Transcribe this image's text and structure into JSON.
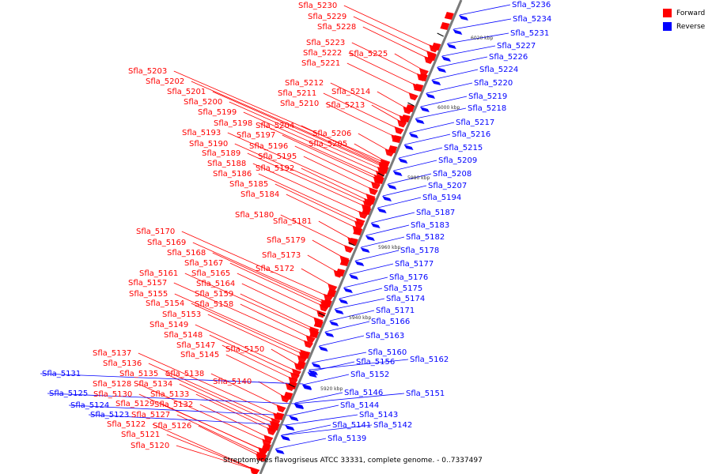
{
  "legend": {
    "forward": {
      "label": "Forward",
      "color": "#ff0000"
    },
    "reverse": {
      "label": "Reverse",
      "color": "#0000ff"
    }
  },
  "caption": "Streptomyces flavogriseus ATCC 33331, complete genome. - 0..7337497",
  "ticks": [
    "6020 kbp",
    "6000 kbp",
    "5980 kbp",
    "5960 kbp",
    "5940 kbp",
    "5920 kbp"
  ],
  "forward_genes": [
    "Sfla_5230",
    "Sfla_5229",
    "Sfla_5228",
    "Sfla_5223",
    "Sfla_5222",
    "Sfla_5225",
    "Sfla_5221",
    "Sfla_5203",
    "Sfla_5202",
    "Sfla_5212",
    "Sfla_5201",
    "Sfla_5211",
    "Sfla_5214",
    "Sfla_5200",
    "Sfla_5210",
    "Sfla_5213",
    "Sfla_5199",
    "Sfla_5198",
    "Sfla_5204",
    "Sfla_5193",
    "Sfla_5197",
    "Sfla_5206",
    "Sfla_5190",
    "Sfla_5196",
    "Sfla_5205",
    "Sfla_5189",
    "Sfla_5195",
    "Sfla_5188",
    "Sfla_5192",
    "Sfla_5186",
    "Sfla_5185",
    "Sfla_5184",
    "Sfla_5180",
    "Sfla_5181",
    "Sfla_5170",
    "Sfla_5169",
    "Sfla_5179",
    "Sfla_5168",
    "Sfla_5173",
    "Sfla_5167",
    "Sfla_5172",
    "Sfla_5161",
    "Sfla_5165",
    "Sfla_5157",
    "Sfla_5164",
    "Sfla_5155",
    "Sfla_5159",
    "Sfla_5154",
    "Sfla_5158",
    "Sfla_5153",
    "Sfla_5149",
    "Sfla_5148",
    "Sfla_5147",
    "Sfla_5150",
    "Sfla_5145",
    "Sfla_5137",
    "Sfla_5136",
    "Sfla_5135",
    "Sfla_5138",
    "Sfla_5134",
    "Sfla_5140",
    "Sfla_5128",
    "Sfla_5133",
    "Sfla_5130",
    "Sfla_5129",
    "Sfla_5132",
    "Sfla_5127",
    "Sfla_5126",
    "Sfla_5122",
    "Sfla_5121",
    "Sfla_5120"
  ],
  "reverse_genes": [
    "Sfla_5236",
    "Sfla_5234",
    "Sfla_5231",
    "Sfla_5227",
    "Sfla_5226",
    "Sfla_5224",
    "Sfla_5220",
    "Sfla_5219",
    "Sfla_5218",
    "Sfla_5217",
    "Sfla_5216",
    "Sfla_5215",
    "Sfla_5209",
    "Sfla_5208",
    "Sfla_5207",
    "Sfla_5194",
    "Sfla_5187",
    "Sfla_5183",
    "Sfla_5182",
    "Sfla_5178",
    "Sfla_5177",
    "Sfla_5176",
    "Sfla_5175",
    "Sfla_5174",
    "Sfla_5171",
    "Sfla_5166",
    "Sfla_5163",
    "Sfla_5160",
    "Sfla_5156",
    "Sfla_5162",
    "Sfla_5152",
    "Sfla_5146",
    "Sfla_5151",
    "Sfla_5144",
    "Sfla_5143",
    "Sfla_5141",
    "Sfla_5142",
    "Sfla_5139",
    "Sfla_5131",
    "Sfla_5125",
    "Sfla_5124",
    "Sfla_5123"
  ]
}
